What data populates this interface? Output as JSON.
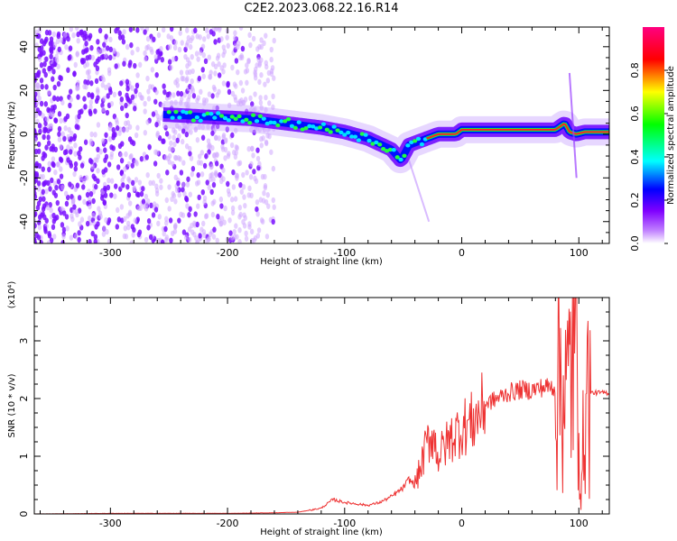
{
  "title": "C2E2.2023.068.22.16.R14",
  "chart_data": [
    {
      "type": "heatmap",
      "title": "C2E2.2023.068.22.16.R14",
      "xlabel": "Height of straight line (km)",
      "ylabel": "Frequency (Hz)",
      "xlim": [
        -365,
        126
      ],
      "ylim": [
        -50,
        49
      ],
      "x_ticks": [
        -300,
        -200,
        -100,
        0,
        100
      ],
      "x_tick_labels": [
        "-300",
        "-200",
        "-100",
        "0",
        "100"
      ],
      "y_ticks": [
        -40,
        -20,
        0,
        20,
        40
      ],
      "y_tick_labels": [
        "-40",
        "-20",
        "0",
        "20",
        "40"
      ],
      "doppler_trace": {
        "x": [
          -255,
          -220,
          -180,
          -150,
          -120,
          -100,
          -80,
          -60,
          -52,
          -45,
          -35,
          -20,
          -5,
          0,
          20,
          50,
          80,
          88,
          92,
          98,
          105,
          126
        ],
        "y": [
          9,
          8,
          7,
          5,
          3,
          1,
          -2,
          -7,
          -12,
          -5,
          -3,
          0,
          0,
          2,
          2,
          2,
          2,
          5,
          1,
          0,
          1,
          1
        ]
      },
      "background_noise_x_range": [
        -365,
        -160
      ],
      "colorbar": {
        "label": "Normalized spectral amplitude",
        "range": [
          0.0,
          1.0
        ],
        "ticks": [
          0.0,
          0.2,
          0.4,
          0.6,
          0.8
        ],
        "tick_labels": [
          "0.0",
          "0.2",
          "0.4",
          "0.6",
          "0.8"
        ],
        "colors": [
          "#ffffff",
          "#8000ff",
          "#0000ff",
          "#00ffff",
          "#00ff00",
          "#ffff00",
          "#ff0000",
          "#ff0080"
        ]
      },
      "grid": false
    },
    {
      "type": "line",
      "xlabel": "Height of straight line (km)",
      "ylabel": "SNR (10 * v/v)",
      "multiplier_label": "(x10⁴)",
      "xlim": [
        -365,
        126
      ],
      "ylim": [
        0,
        3.75
      ],
      "x_ticks": [
        -300,
        -200,
        -100,
        0,
        100
      ],
      "x_tick_labels": [
        "-300",
        "-200",
        "-100",
        "0",
        "100"
      ],
      "y_ticks": [
        0,
        1,
        2,
        3
      ],
      "y_tick_labels": [
        "0",
        "1",
        "2",
        "3"
      ],
      "color": "#ee3333",
      "series": [
        {
          "x": [
            -365,
            -300,
            -200,
            -160,
            -140,
            -120,
            -110,
            -100,
            -80,
            -70,
            -60,
            -50,
            -45,
            -40,
            -35,
            -30,
            -25,
            -20,
            -10,
            0,
            10,
            20,
            30,
            40,
            50,
            60,
            70,
            80,
            85,
            90,
            95,
            100,
            102,
            105,
            110,
            126
          ],
          "y": [
            0,
            0.01,
            0.01,
            0.02,
            0.03,
            0.1,
            0.25,
            0.2,
            0.15,
            0.2,
            0.3,
            0.45,
            0.6,
            0.5,
            0.8,
            1.2,
            1.4,
            1.0,
            1.3,
            1.5,
            1.6,
            1.9,
            2.0,
            2.1,
            2.15,
            2.15,
            2.2,
            2.2,
            2.5,
            2.0,
            3.0,
            2.3,
            0.1,
            2.1,
            2.1,
            2.1
          ]
        }
      ],
      "grid": false
    }
  ]
}
